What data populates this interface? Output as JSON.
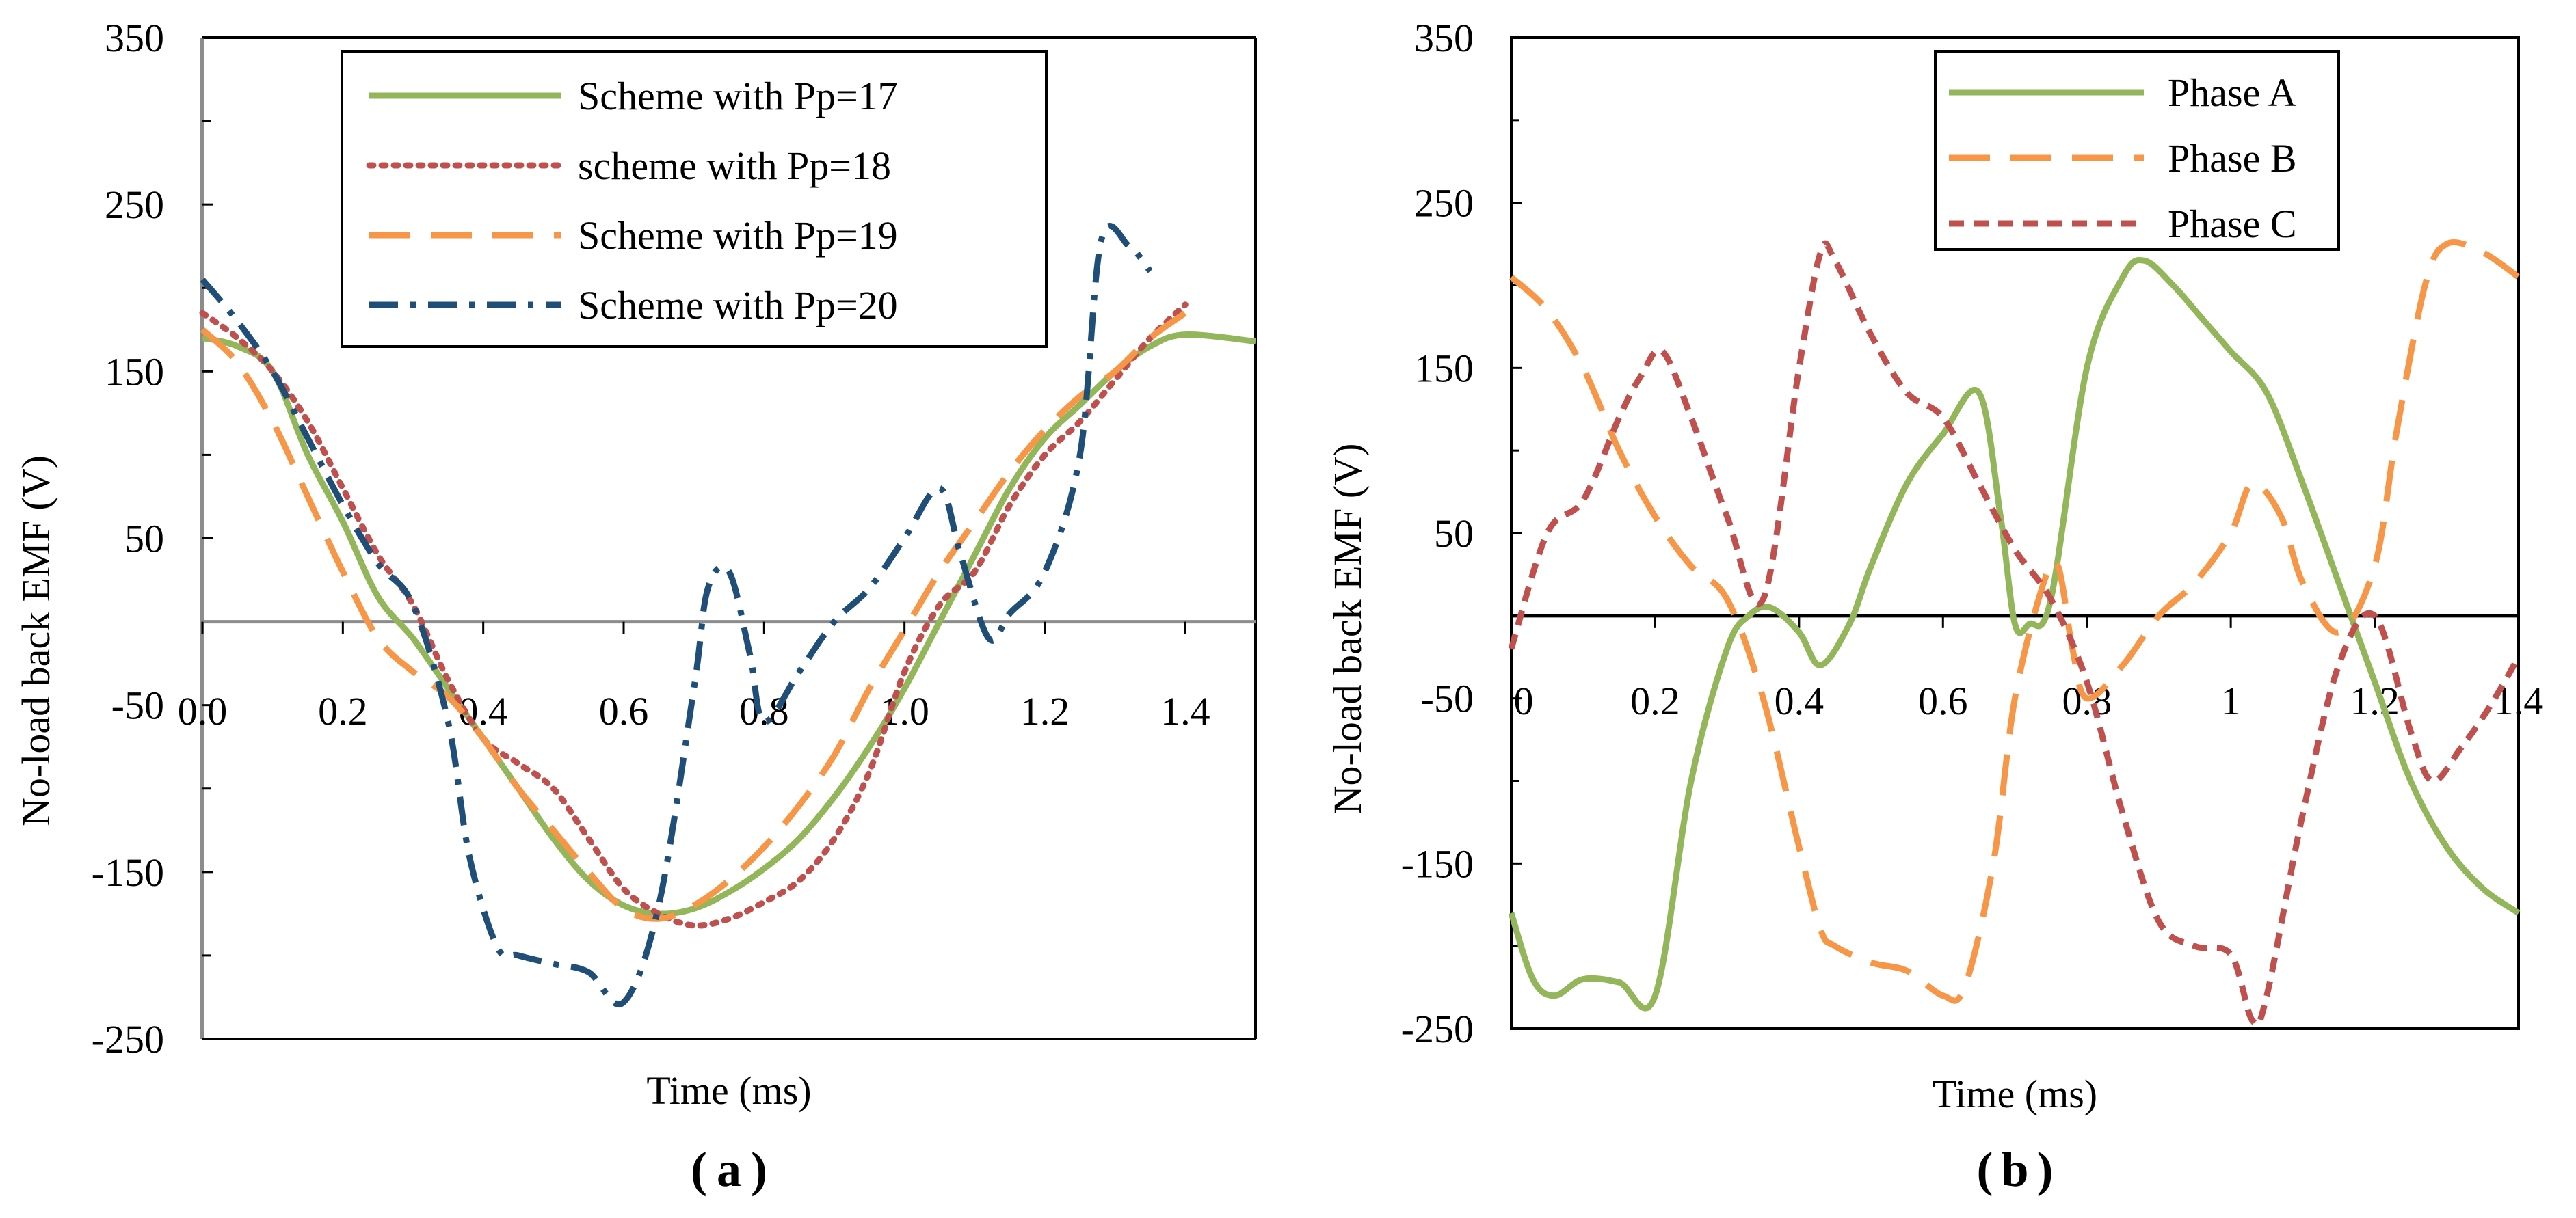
{
  "chart_data": [
    {
      "type": "line",
      "panel_label": "(a)",
      "panel_letter": "a",
      "xlabel": "Time (ms)",
      "ylabel": "No-load back EMF (V)",
      "xlim": [
        0,
        1.5
      ],
      "ylim": [
        -250,
        350
      ],
      "xticks": [
        0,
        0.2,
        0.4,
        0.6,
        0.8,
        1.0,
        1.2,
        1.4
      ],
      "xtick_labels": [
        "0.0",
        "0.2",
        "0.4",
        "0.6",
        "0.8",
        "1.0",
        "1.2",
        "1.4"
      ],
      "yticks": [
        -250,
        -150,
        -50,
        50,
        150,
        250,
        350
      ],
      "ytick_labels": [
        "-250",
        "-150",
        "-50",
        "50",
        "150",
        "250",
        "350"
      ],
      "legend_position": "top-right",
      "series": [
        {
          "name": "Scheme with Pp=17",
          "color": "#92b659",
          "dash": "solid",
          "x": [
            0,
            0.05,
            0.1,
            0.15,
            0.2,
            0.25,
            0.3,
            0.35,
            0.4,
            0.45,
            0.5,
            0.55,
            0.6,
            0.65,
            0.7,
            0.75,
            0.8,
            0.85,
            0.9,
            0.95,
            1.0,
            1.05,
            1.1,
            1.15,
            1.2,
            1.25,
            1.3,
            1.35,
            1.4,
            1.5
          ],
          "y": [
            170,
            165,
            150,
            100,
            60,
            15,
            -10,
            -40,
            -70,
            -100,
            -130,
            -155,
            -170,
            -175,
            -172,
            -162,
            -148,
            -130,
            -105,
            -75,
            -40,
            0,
            40,
            80,
            110,
            130,
            150,
            165,
            172,
            168
          ]
        },
        {
          "name": "scheme with Pp=18",
          "color": "#c0504d",
          "dash": "dotted",
          "x": [
            0,
            0.05,
            0.1,
            0.15,
            0.2,
            0.25,
            0.3,
            0.35,
            0.4,
            0.45,
            0.5,
            0.55,
            0.6,
            0.65,
            0.7,
            0.75,
            0.8,
            0.85,
            0.9,
            0.95,
            1.0,
            1.05,
            1.1,
            1.15,
            1.2,
            1.25,
            1.3,
            1.35,
            1.4
          ],
          "y": [
            185,
            170,
            150,
            120,
            80,
            40,
            10,
            -35,
            -70,
            -85,
            -100,
            -130,
            -160,
            -175,
            -182,
            -178,
            -168,
            -155,
            -130,
            -90,
            -30,
            10,
            30,
            70,
            100,
            120,
            145,
            170,
            190
          ]
        },
        {
          "name": "Scheme with Pp=19",
          "color": "#f79646",
          "dash": "long-dash",
          "x": [
            0,
            0.05,
            0.1,
            0.15,
            0.2,
            0.25,
            0.3,
            0.35,
            0.4,
            0.45,
            0.5,
            0.55,
            0.6,
            0.65,
            0.7,
            0.75,
            0.8,
            0.85,
            0.9,
            0.95,
            1.0,
            1.05,
            1.1,
            1.15,
            1.2,
            1.25,
            1.3,
            1.35,
            1.4
          ],
          "y": [
            175,
            155,
            120,
            75,
            30,
            -10,
            -30,
            -45,
            -70,
            -100,
            -125,
            -150,
            -172,
            -178,
            -170,
            -155,
            -135,
            -110,
            -80,
            -40,
            -5,
            30,
            60,
            90,
            115,
            135,
            150,
            170,
            185
          ]
        },
        {
          "name": "Scheme with Pp=20",
          "color": "#1f4e79",
          "dash": "dash-dot",
          "x": [
            0,
            0.05,
            0.1,
            0.15,
            0.2,
            0.25,
            0.3,
            0.35,
            0.38,
            0.42,
            0.45,
            0.5,
            0.55,
            0.6,
            0.65,
            0.7,
            0.72,
            0.75,
            0.78,
            0.8,
            0.85,
            0.9,
            0.95,
            1.0,
            1.05,
            1.08,
            1.12,
            1.15,
            1.2,
            1.25,
            1.28,
            1.32,
            1.35
          ],
          "y": [
            205,
            180,
            150,
            110,
            70,
            35,
            10,
            -60,
            -140,
            -195,
            -200,
            -205,
            -210,
            -228,
            -170,
            -40,
            20,
            30,
            -20,
            -60,
            -30,
            0,
            20,
            50,
            80,
            40,
            -10,
            5,
            30,
            100,
            228,
            225,
            210
          ]
        }
      ]
    },
    {
      "type": "line",
      "panel_label": "(b)",
      "panel_letter": "b",
      "xlabel": "Time (ms)",
      "ylabel": "No-load back EMF (V)",
      "xlim": [
        0,
        1.4
      ],
      "ylim": [
        -250,
        350
      ],
      "xticks": [
        0,
        0.2,
        0.4,
        0.6,
        0.8,
        1.0,
        1.2,
        1.4
      ],
      "xtick_labels": [
        "0",
        "0.2",
        "0.4",
        "0.6",
        "0.8",
        "1",
        "1.2",
        "1.4"
      ],
      "yticks": [
        -250,
        -150,
        -50,
        50,
        150,
        250,
        350
      ],
      "ytick_labels": [
        "-250",
        "-150",
        "-50",
        "50",
        "150",
        "250",
        "350"
      ],
      "legend_position": "top-right",
      "series": [
        {
          "name": "Phase A",
          "color": "#92b659",
          "dash": "solid",
          "x": [
            0,
            0.03,
            0.06,
            0.1,
            0.15,
            0.2,
            0.25,
            0.3,
            0.33,
            0.36,
            0.4,
            0.43,
            0.47,
            0.5,
            0.55,
            0.6,
            0.65,
            0.68,
            0.7,
            0.72,
            0.75,
            0.8,
            0.85,
            0.88,
            0.92,
            0.96,
            1.0,
            1.05,
            1.1,
            1.15,
            1.2,
            1.25,
            1.3,
            1.35,
            1.4
          ],
          "y": [
            -180,
            -220,
            -230,
            -220,
            -222,
            -230,
            -100,
            -20,
            0,
            5,
            -10,
            -30,
            -5,
            30,
            80,
            110,
            135,
            60,
            -5,
            -5,
            10,
            150,
            205,
            215,
            200,
            180,
            160,
            135,
            80,
            20,
            -40,
            -100,
            -140,
            -165,
            -180
          ]
        },
        {
          "name": "Phase B",
          "color": "#f79646",
          "dash": "long-dash",
          "x": [
            0,
            0.05,
            0.1,
            0.15,
            0.2,
            0.25,
            0.3,
            0.35,
            0.4,
            0.43,
            0.45,
            0.5,
            0.55,
            0.6,
            0.63,
            0.67,
            0.7,
            0.74,
            0.76,
            0.78,
            0.8,
            0.85,
            0.9,
            0.95,
            1.0,
            1.03,
            1.07,
            1.1,
            1.15,
            1.2,
            1.23,
            1.27,
            1.3,
            1.35,
            1.4
          ],
          "y": [
            205,
            185,
            150,
            100,
            60,
            30,
            10,
            -50,
            -140,
            -190,
            -200,
            -210,
            -215,
            -230,
            -225,
            -150,
            -50,
            20,
            30,
            -20,
            -50,
            -30,
            0,
            20,
            50,
            80,
            60,
            20,
            -10,
            30,
            110,
            200,
            225,
            220,
            205
          ]
        },
        {
          "name": "Phase C",
          "color": "#c0504d",
          "dash": "short-dash",
          "x": [
            0,
            0.05,
            0.1,
            0.15,
            0.18,
            0.21,
            0.25,
            0.3,
            0.35,
            0.4,
            0.43,
            0.45,
            0.5,
            0.55,
            0.6,
            0.65,
            0.7,
            0.75,
            0.8,
            0.85,
            0.9,
            0.95,
            1.0,
            1.03,
            1.05,
            1.1,
            1.15,
            1.2,
            1.25,
            1.28,
            1.32,
            1.36,
            1.4
          ],
          "y": [
            -20,
            50,
            70,
            120,
            145,
            160,
            120,
            60,
            10,
            150,
            220,
            215,
            170,
            135,
            120,
            80,
            40,
            10,
            -40,
            -120,
            -185,
            -200,
            -205,
            -245,
            -230,
            -120,
            -30,
            0,
            -70,
            -100,
            -80,
            -55,
            -25
          ]
        }
      ]
    }
  ]
}
